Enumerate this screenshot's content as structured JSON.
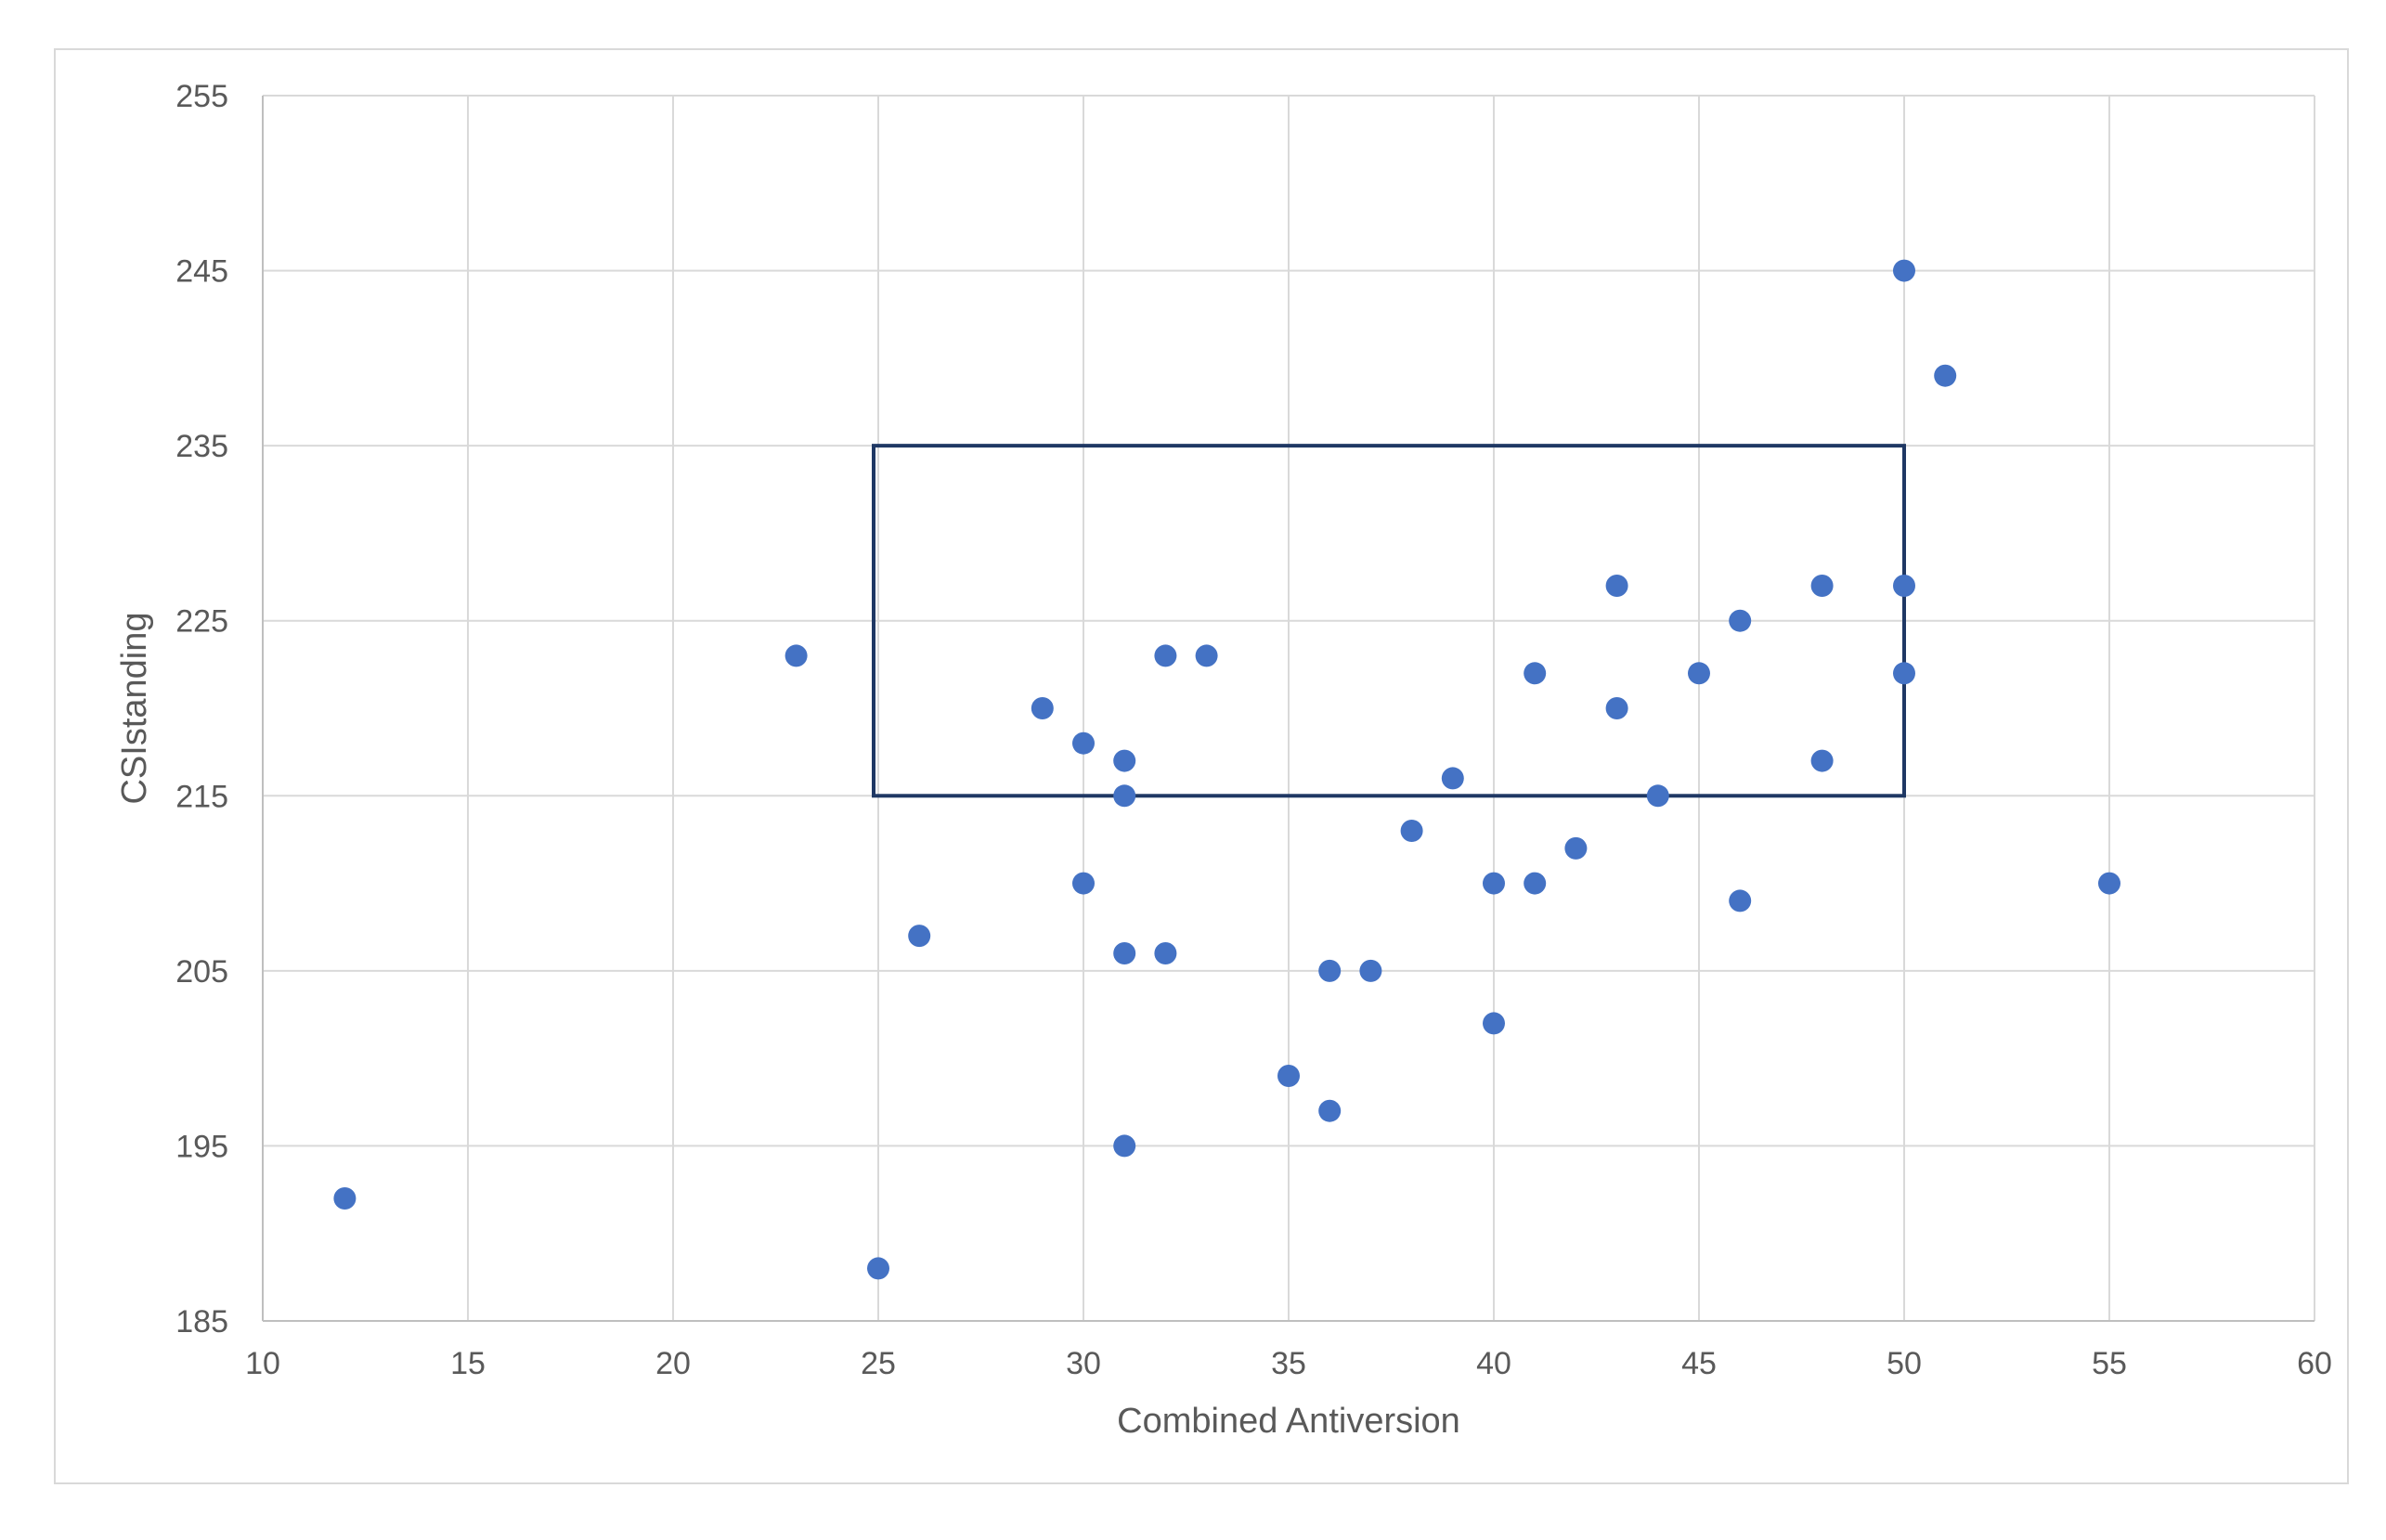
{
  "chart_data": {
    "type": "scatter",
    "title": "",
    "xlabel": "Combined Antiversion",
    "ylabel": "CSIstanding",
    "xlim": [
      10,
      60
    ],
    "ylim": [
      185,
      255
    ],
    "x_ticks": [
      10,
      15,
      20,
      25,
      30,
      35,
      40,
      45,
      50,
      55,
      60
    ],
    "y_ticks": [
      185,
      195,
      205,
      215,
      225,
      235,
      245,
      255
    ],
    "grid": true,
    "legend": "none",
    "marker_color": "#4472C4",
    "series": [
      {
        "points": [
          [
            12,
            192
          ],
          [
            23,
            223
          ],
          [
            25,
            188
          ],
          [
            26,
            207
          ],
          [
            29,
            220
          ],
          [
            30,
            218
          ],
          [
            30,
            210
          ],
          [
            31,
            217
          ],
          [
            31,
            215
          ],
          [
            31,
            206
          ],
          [
            31,
            195
          ],
          [
            32,
            223
          ],
          [
            32,
            206
          ],
          [
            33,
            223
          ],
          [
            35,
            199
          ],
          [
            36,
            205
          ],
          [
            36,
            197
          ],
          [
            37,
            205
          ],
          [
            38,
            213
          ],
          [
            39,
            216
          ],
          [
            40,
            210
          ],
          [
            40,
            202
          ],
          [
            41,
            222
          ],
          [
            41,
            210
          ],
          [
            42,
            212
          ],
          [
            43,
            227
          ],
          [
            43,
            220
          ],
          [
            44,
            215
          ],
          [
            45,
            222
          ],
          [
            46,
            225
          ],
          [
            46,
            209
          ],
          [
            48,
            227
          ],
          [
            48,
            217
          ],
          [
            50,
            245
          ],
          [
            50,
            227
          ],
          [
            50,
            222
          ],
          [
            51,
            239
          ],
          [
            55,
            210
          ]
        ]
      }
    ],
    "annotation_rect": {
      "x_range": [
        25,
        50
      ],
      "y_range": [
        215,
        235
      ],
      "color": "#1F3864"
    }
  }
}
